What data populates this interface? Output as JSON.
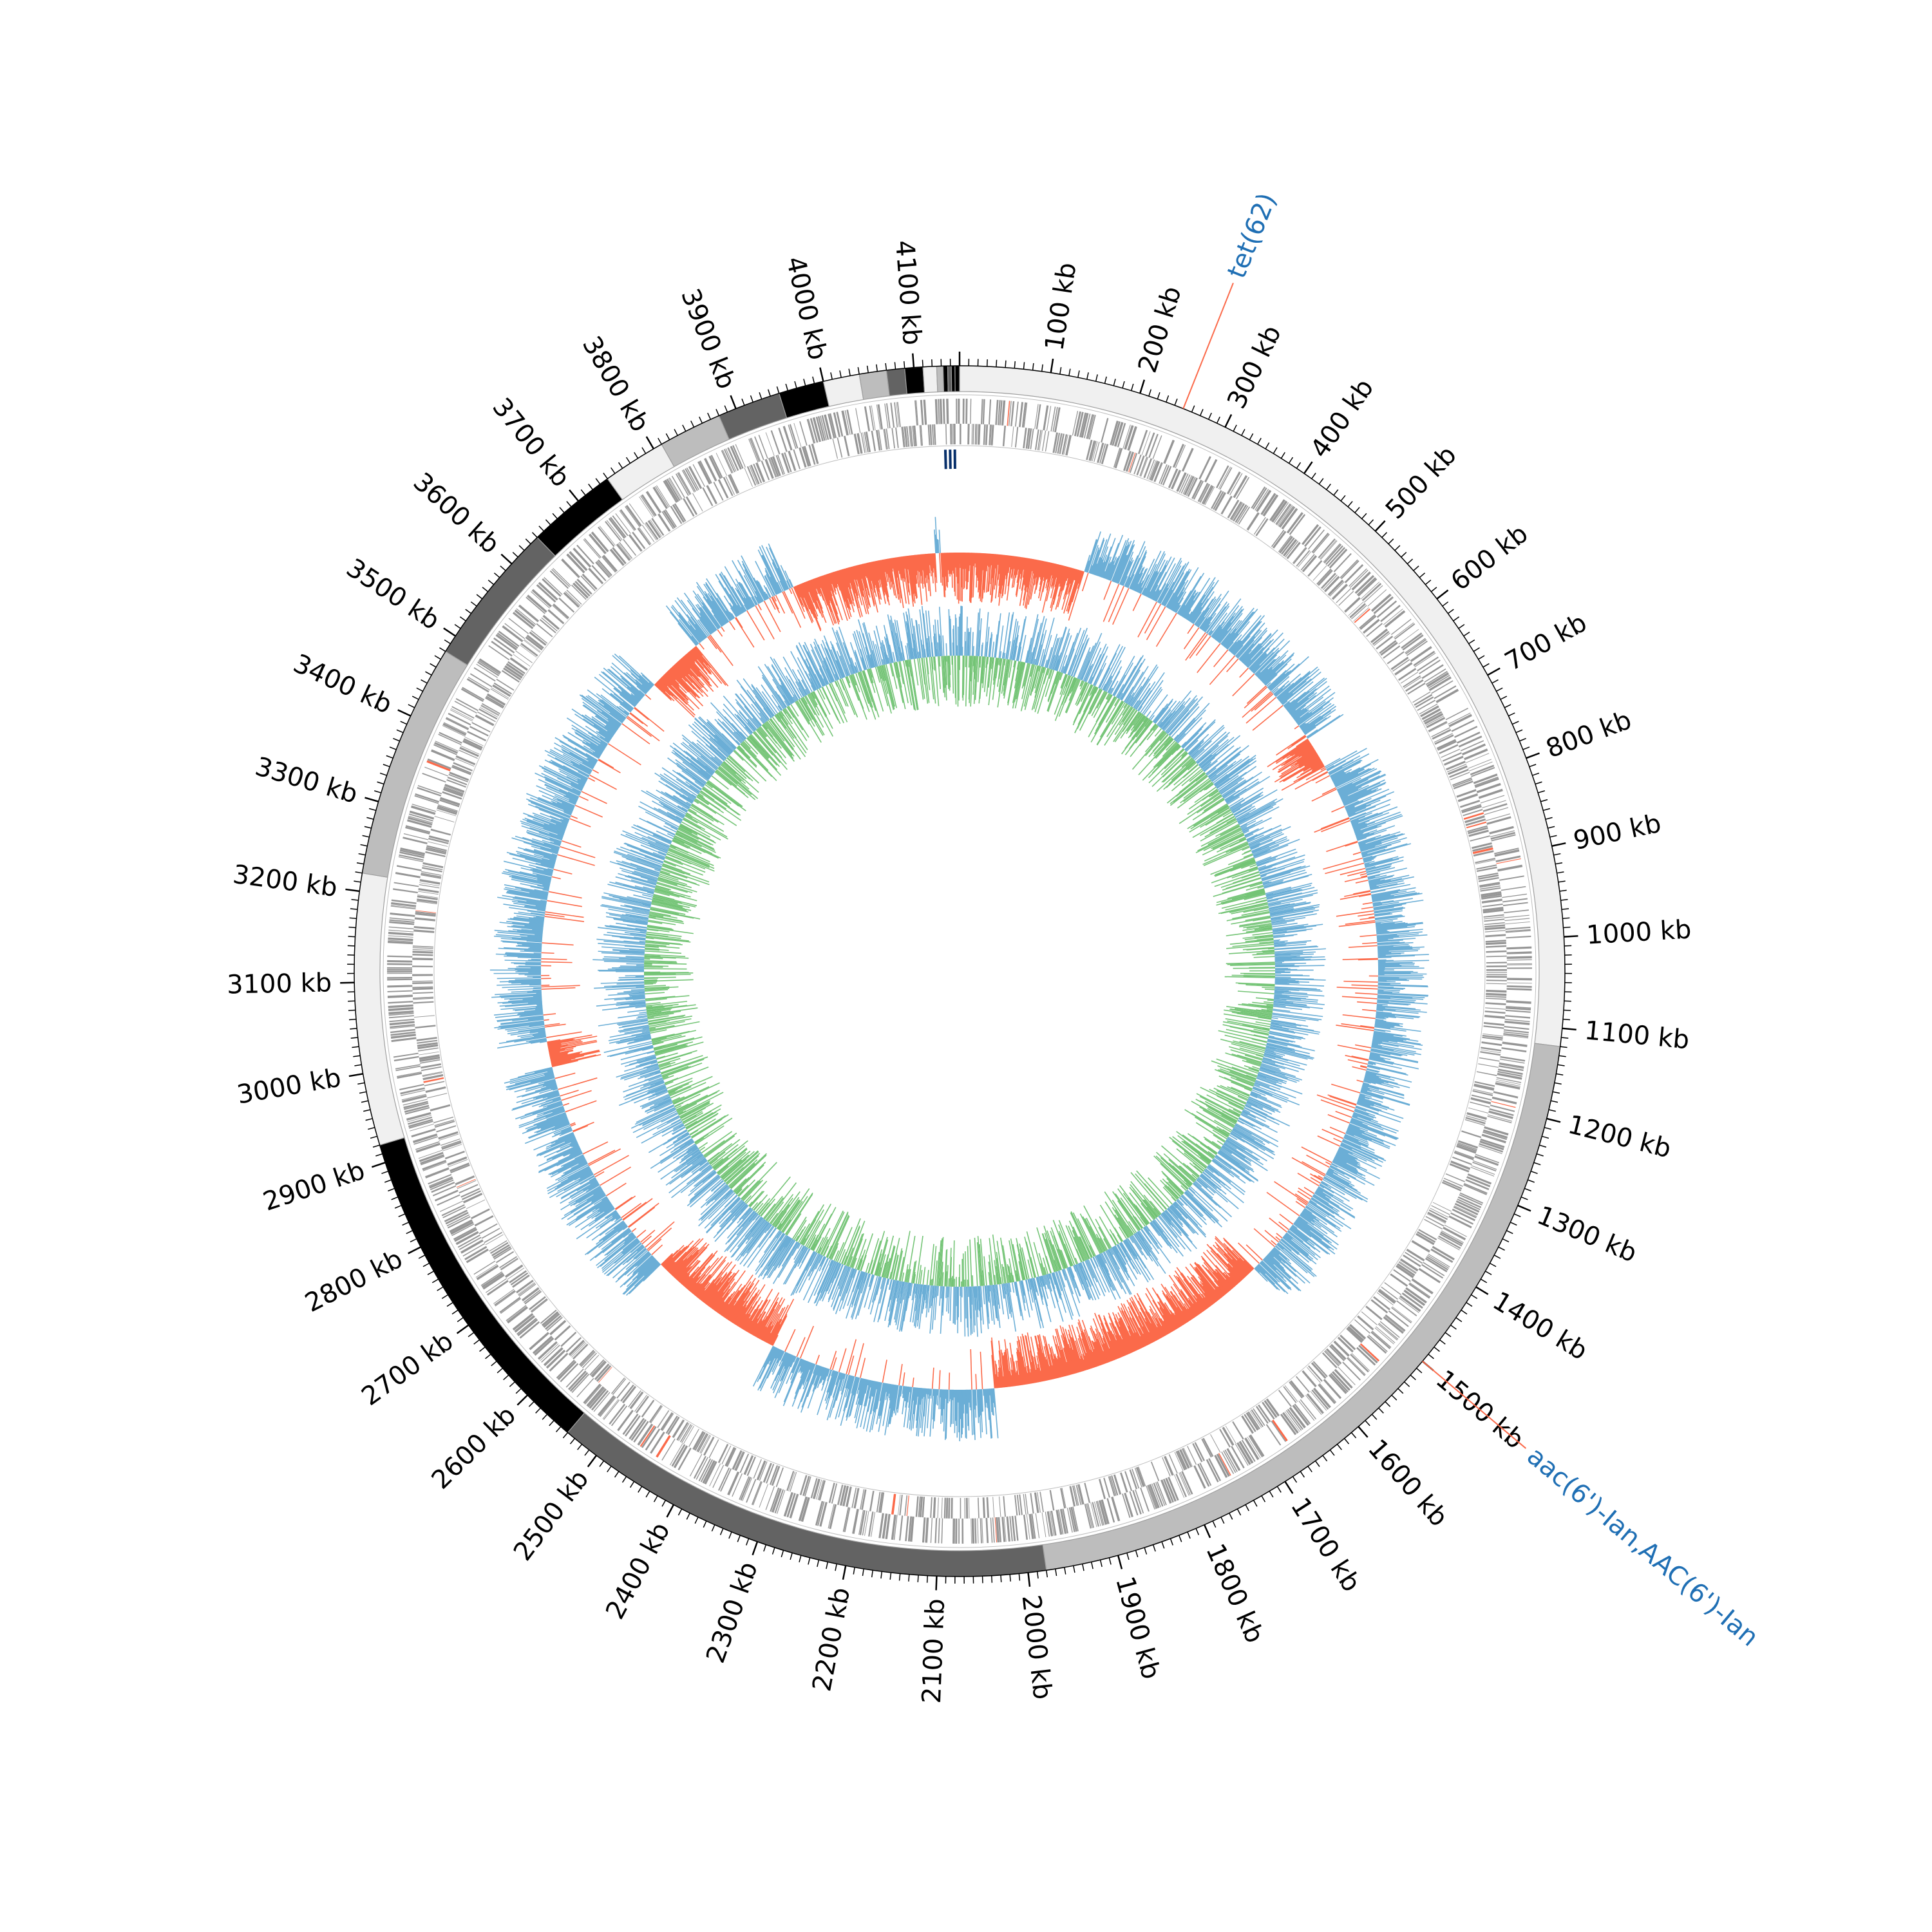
{
  "genome_map": {
    "type": "circular-genome",
    "genome_length_kb": 4150,
    "tick_labels": [
      "100 kb",
      "200 kb",
      "300 kb",
      "400 kb",
      "500 kb",
      "600 kb",
      "700 kb",
      "800 kb",
      "900 kb",
      "1000 kb",
      "1100 kb",
      "1200 kb",
      "1300 kb",
      "1400 kb",
      "1500 kb",
      "1600 kb",
      "1700 kb",
      "1800 kb",
      "1900 kb",
      "2000 kb",
      "2100 kb",
      "2200 kb",
      "2300 kb",
      "2400 kb",
      "2500 kb",
      "2600 kb",
      "2700 kb",
      "2800 kb",
      "2900 kb",
      "3000 kb",
      "3100 kb",
      "3200 kb",
      "3300 kb",
      "3400 kb",
      "3500 kb",
      "3600 kb",
      "3700 kb",
      "3800 kb",
      "3900 kb",
      "4000 kb",
      "4100 kb"
    ],
    "contigs_kb": [
      {
        "start": 0,
        "end": 1120,
        "color": "#f0f0f0"
      },
      {
        "start": 1120,
        "end": 1980,
        "color": "#bdbdbd"
      },
      {
        "start": 1980,
        "end": 2540,
        "color": "#636363"
      },
      {
        "start": 2540,
        "end": 2920,
        "color": "#000000"
      },
      {
        "start": 2920,
        "end": 3220,
        "color": "#f0f0f0"
      },
      {
        "start": 3220,
        "end": 3480,
        "color": "#bdbdbd"
      },
      {
        "start": 3480,
        "end": 3640,
        "color": "#636363"
      },
      {
        "start": 3640,
        "end": 3740,
        "color": "#000000"
      },
      {
        "start": 3740,
        "end": 3810,
        "color": "#f0f0f0"
      },
      {
        "start": 3810,
        "end": 3880,
        "color": "#bdbdbd"
      },
      {
        "start": 3880,
        "end": 3950,
        "color": "#636363"
      },
      {
        "start": 3950,
        "end": 4000,
        "color": "#000000"
      },
      {
        "start": 4000,
        "end": 4040,
        "color": "#f0f0f0"
      },
      {
        "start": 4040,
        "end": 4070,
        "color": "#bdbdbd"
      },
      {
        "start": 4070,
        "end": 4090,
        "color": "#636363"
      },
      {
        "start": 4090,
        "end": 4110,
        "color": "#000000"
      },
      {
        "start": 4110,
        "end": 4125,
        "color": "#f0f0f0"
      },
      {
        "start": 4125,
        "end": 4132,
        "color": "#bdbdbd"
      },
      {
        "start": 4132,
        "end": 4137,
        "color": "#000000"
      },
      {
        "start": 4137,
        "end": 4141,
        "color": "#636363"
      },
      {
        "start": 4141,
        "end": 4145,
        "color": "#000000"
      },
      {
        "start": 4145,
        "end": 4150,
        "color": "#000000"
      }
    ],
    "annotations": [
      {
        "label": "tet(62)",
        "position_kb": 250
      },
      {
        "label": "aac(6')-Ian,AAC(6')-Ian",
        "position_kb": 1500
      }
    ],
    "gc_content_colors": {
      "above": "#6baed6",
      "below": "#fb6a4a"
    },
    "gc_skew_colors": {
      "positive": "#6baed6",
      "negative": "#74c476"
    },
    "gene_color": "#969696",
    "highlight_gene_color": "#fb6a4a",
    "rna_marker_color": "#08306b"
  }
}
